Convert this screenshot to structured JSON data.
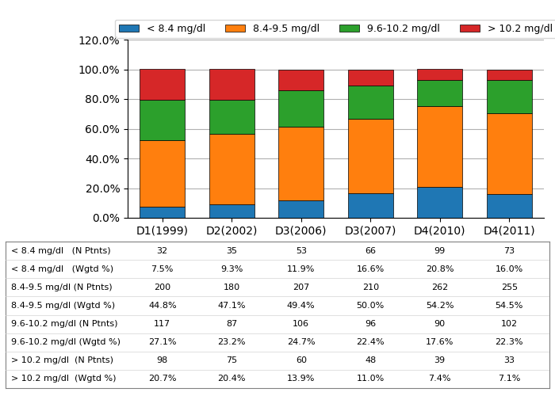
{
  "chart_data": {
    "type": "bar",
    "stacked": true,
    "grid": true,
    "legend": "upper center",
    "categories": [
      "D1(1999)",
      "D2(2002)",
      "D3(2006)",
      "D3(2007)",
      "D4(2010)",
      "D4(2011)"
    ],
    "series": [
      {
        "name": "< 8.4 mg/dl",
        "values": [
          7.5,
          9.3,
          11.9,
          16.6,
          20.8,
          16.0
        ]
      },
      {
        "name": "8.4-9.5 mg/dl",
        "values": [
          44.8,
          47.1,
          49.4,
          50.0,
          54.2,
          54.5
        ]
      },
      {
        "name": "9.6-10.2 mg/dl",
        "values": [
          27.1,
          23.2,
          24.7,
          22.4,
          17.6,
          22.3
        ]
      },
      {
        "name": "> 10.2 mg/dl",
        "values": [
          20.7,
          20.4,
          13.9,
          11.0,
          7.4,
          7.1
        ]
      }
    ],
    "ylim": [
      0,
      120
    ],
    "yticks": [
      {
        "value": 0,
        "label": "0.0%"
      },
      {
        "value": 20,
        "label": "20.0%"
      },
      {
        "value": 40,
        "label": "40.0%"
      },
      {
        "value": 60,
        "label": "60.0%"
      },
      {
        "value": 80,
        "label": "80.0%"
      },
      {
        "value": 100,
        "label": "100.0%"
      },
      {
        "value": 120,
        "label": "120.0%"
      }
    ],
    "table": [
      {
        "label": "< 8.4 mg/dl   (N Ptnts)",
        "values": [
          32,
          35,
          53,
          66,
          99,
          73
        ]
      },
      {
        "label": "< 8.4 mg/dl   (Wgtd %)",
        "values": [
          7.5,
          9.3,
          11.9,
          16.6,
          20.8,
          16.0
        ],
        "value_labels": [
          "7.5%",
          "9.3%",
          "11.9%",
          "16.6%",
          "20.8%",
          "16.0%"
        ]
      },
      {
        "label": "8.4-9.5 mg/dl (N Ptnts)",
        "values": [
          200,
          180,
          207,
          210,
          262,
          255
        ]
      },
      {
        "label": "8.4-9.5 mg/dl (Wgtd %)",
        "values": [
          44.8,
          47.1,
          49.4,
          50.0,
          54.2,
          54.5
        ],
        "value_labels": [
          "44.8%",
          "47.1%",
          "49.4%",
          "50.0%",
          "54.2%",
          "54.5%"
        ]
      },
      {
        "label": "9.6-10.2 mg/dl (N Ptnts)",
        "values": [
          117,
          87,
          106,
          96,
          90,
          102
        ]
      },
      {
        "label": "9.6-10.2 mg/dl (Wgtd %)",
        "values": [
          27.1,
          23.2,
          24.7,
          22.4,
          17.6,
          22.3
        ],
        "value_labels": [
          "27.1%",
          "23.2%",
          "24.7%",
          "22.4%",
          "17.6%",
          "22.3%"
        ]
      },
      {
        "label": "> 10.2 mg/dl  (N Ptnts)",
        "values": [
          98,
          75,
          60,
          48,
          39,
          33
        ]
      },
      {
        "label": "> 10.2 mg/dl  (Wgtd %)",
        "values": [
          20.7,
          20.4,
          13.9,
          11.0,
          7.4,
          7.1
        ],
        "value_labels": [
          "20.7%",
          "20.4%",
          "13.9%",
          "11.0%",
          "7.4%",
          "7.1%"
        ]
      }
    ]
  }
}
